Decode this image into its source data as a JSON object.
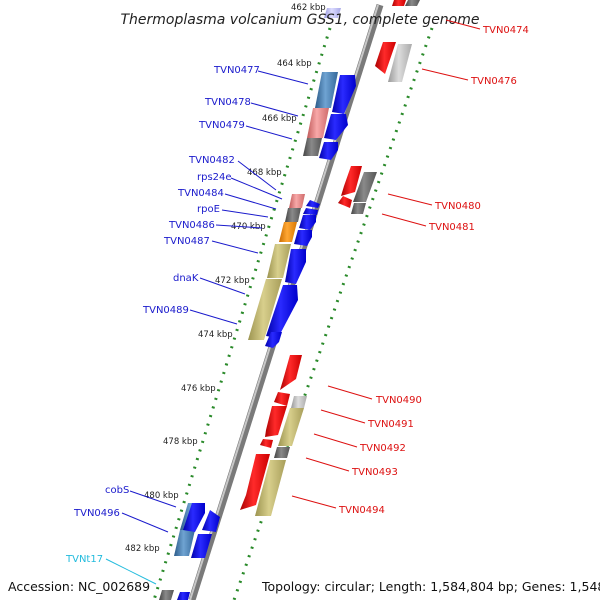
{
  "title": "Thermoplasma volcanium GSS1, complete genome",
  "footer": {
    "accession": "Accession: NC_002689",
    "topology": "Topology: circular; Length: 1,584,804 bp; Genes: 1,548"
  },
  "colors": {
    "forward_label": "#1a1acc",
    "reverse_label": "#dd1111",
    "trna_label": "#22bbdd",
    "backbone": "#888888",
    "tick": "#2a8a2a",
    "blue_arrow": "#0a0aee",
    "red_arrow": "#ee0a0a"
  },
  "kbp_labels": [
    "462 kbp",
    "464 kbp",
    "466 kbp",
    "468 kbp",
    "470 kbp",
    "472 kbp",
    "474 kbp",
    "476 kbp",
    "478 kbp",
    "480 kbp",
    "482 kbp"
  ],
  "forward_genes": [
    "TVN0477",
    "TVN0478",
    "TVN0479",
    "TVN0482",
    "rps24e",
    "TVN0484",
    "rpoE",
    "TVN0486",
    "TVN0487",
    "dnaK",
    "TVN0489",
    "cobS",
    "TVN0496"
  ],
  "trna_genes": [
    "TVNt17"
  ],
  "reverse_genes": [
    "TVN0474",
    "TVN0476",
    "TVN0480",
    "TVN0481",
    "TVN0490",
    "TVN0491",
    "TVN0492",
    "TVN0493",
    "TVN0494"
  ]
}
